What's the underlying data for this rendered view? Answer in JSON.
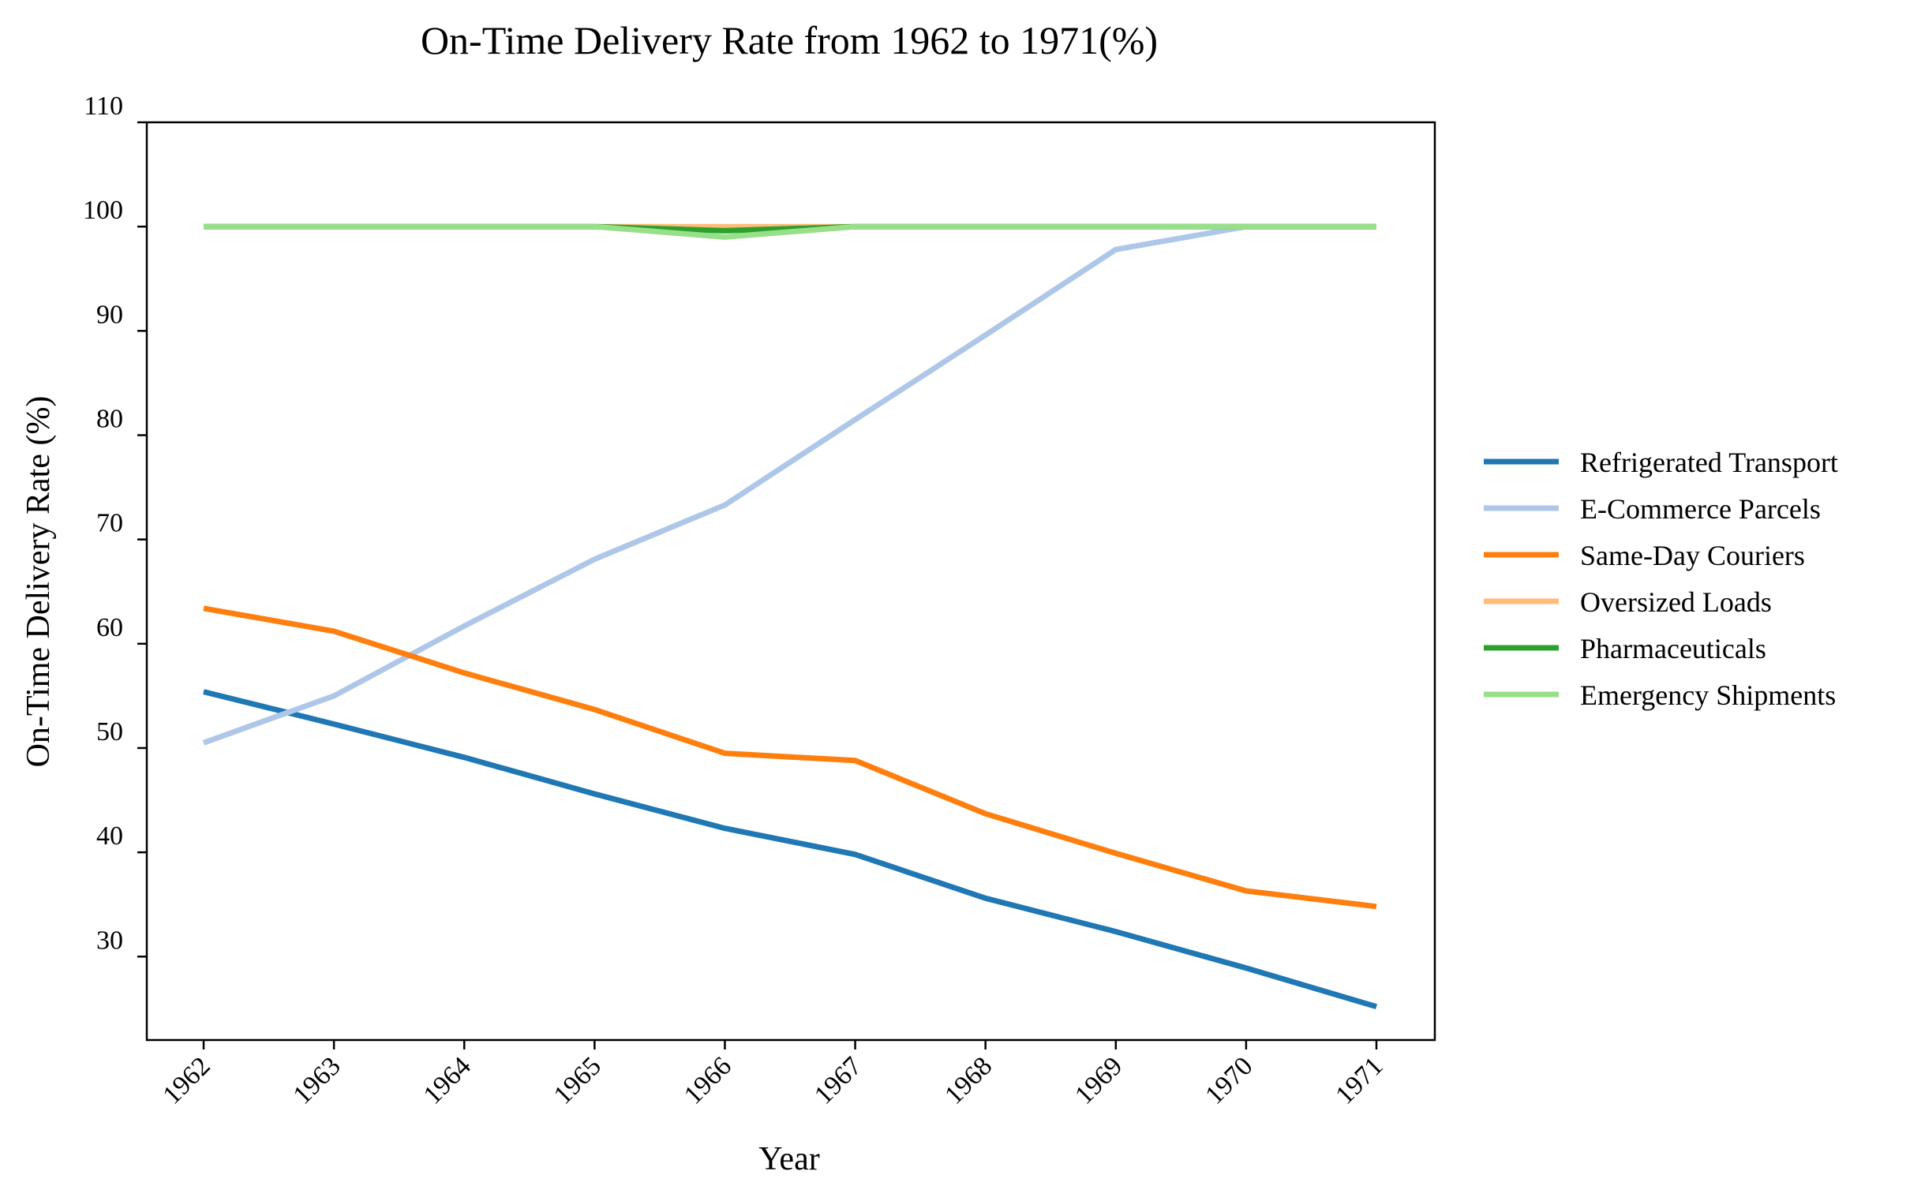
{
  "chart_data": {
    "type": "line",
    "title": "On-Time Delivery Rate from 1962 to 1971(%)",
    "xlabel": "Year",
    "ylabel": "On-Time Delivery Rate (%)",
    "x": [
      "1962",
      "1963",
      "1964",
      "1965",
      "1966",
      "1967",
      "1968",
      "1969",
      "1970",
      "1971"
    ],
    "ylim": [
      22,
      110
    ],
    "yticks": [
      30,
      40,
      50,
      60,
      70,
      80,
      90,
      100,
      110
    ],
    "grid": false,
    "legend_position": "right",
    "series": [
      {
        "name": "Refrigerated Transport",
        "color": "#1f77b4",
        "values": [
          55.4,
          52.3,
          49.1,
          45.6,
          42.3,
          39.8,
          35.6,
          32.4,
          28.9,
          25.2
        ]
      },
      {
        "name": "E-Commerce Parcels",
        "color": "#aec7e8",
        "values": [
          50.5,
          55.0,
          61.7,
          68.1,
          73.3,
          81.5,
          89.6,
          97.8,
          100,
          100
        ]
      },
      {
        "name": "Same-Day Couriers",
        "color": "#ff7f0e",
        "values": [
          63.4,
          61.2,
          57.2,
          53.7,
          49.5,
          48.8,
          43.7,
          39.9,
          36.3,
          34.8
        ]
      },
      {
        "name": "Oversized Loads",
        "color": "#ffbb78",
        "values": [
          100,
          100,
          100,
          100,
          100,
          100,
          100,
          100,
          100,
          100
        ]
      },
      {
        "name": "Pharmaceuticals",
        "color": "#2ca02c",
        "values": [
          100,
          100,
          100,
          100,
          99.6,
          100,
          100,
          100,
          100,
          100
        ]
      },
      {
        "name": "Emergency Shipments",
        "color": "#98df8a",
        "values": [
          100,
          100,
          100,
          100,
          99.0,
          100,
          100,
          100,
          100,
          100
        ]
      }
    ]
  }
}
